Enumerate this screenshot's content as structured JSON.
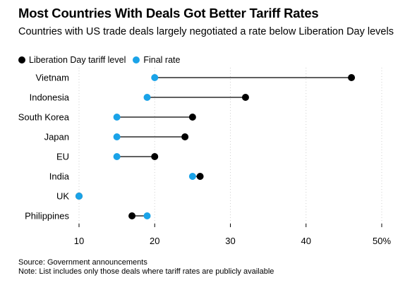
{
  "chart_data": {
    "type": "dot-plot",
    "title": "Most Countries With Deals Got Better Tariff Rates",
    "subtitle": "Countries with US trade deals largely negotiated a rate below Liberation Day levels",
    "categories": [
      "Vietnam",
      "Indonesia",
      "South Korea",
      "Japan",
      "EU",
      "India",
      "UK",
      "Philippines"
    ],
    "series": [
      {
        "name": "Liberation Day tariff level",
        "color": "#000000",
        "values": [
          46,
          32,
          25,
          24,
          20,
          26,
          10,
          17
        ]
      },
      {
        "name": "Final rate",
        "color": "#1aa3e8",
        "values": [
          20,
          19,
          15,
          15,
          15,
          25,
          10,
          19
        ]
      }
    ],
    "xlim": [
      10,
      50
    ],
    "xticks": [
      10,
      20,
      30,
      40,
      50
    ],
    "xtick_labels": [
      "10",
      "20",
      "30",
      "40",
      "50%"
    ],
    "grid": "vertical dotted",
    "legend": "top-left",
    "source": "Source: Government announcements",
    "note": "Note: List includes only those deals where tariff rates are publicly available"
  }
}
